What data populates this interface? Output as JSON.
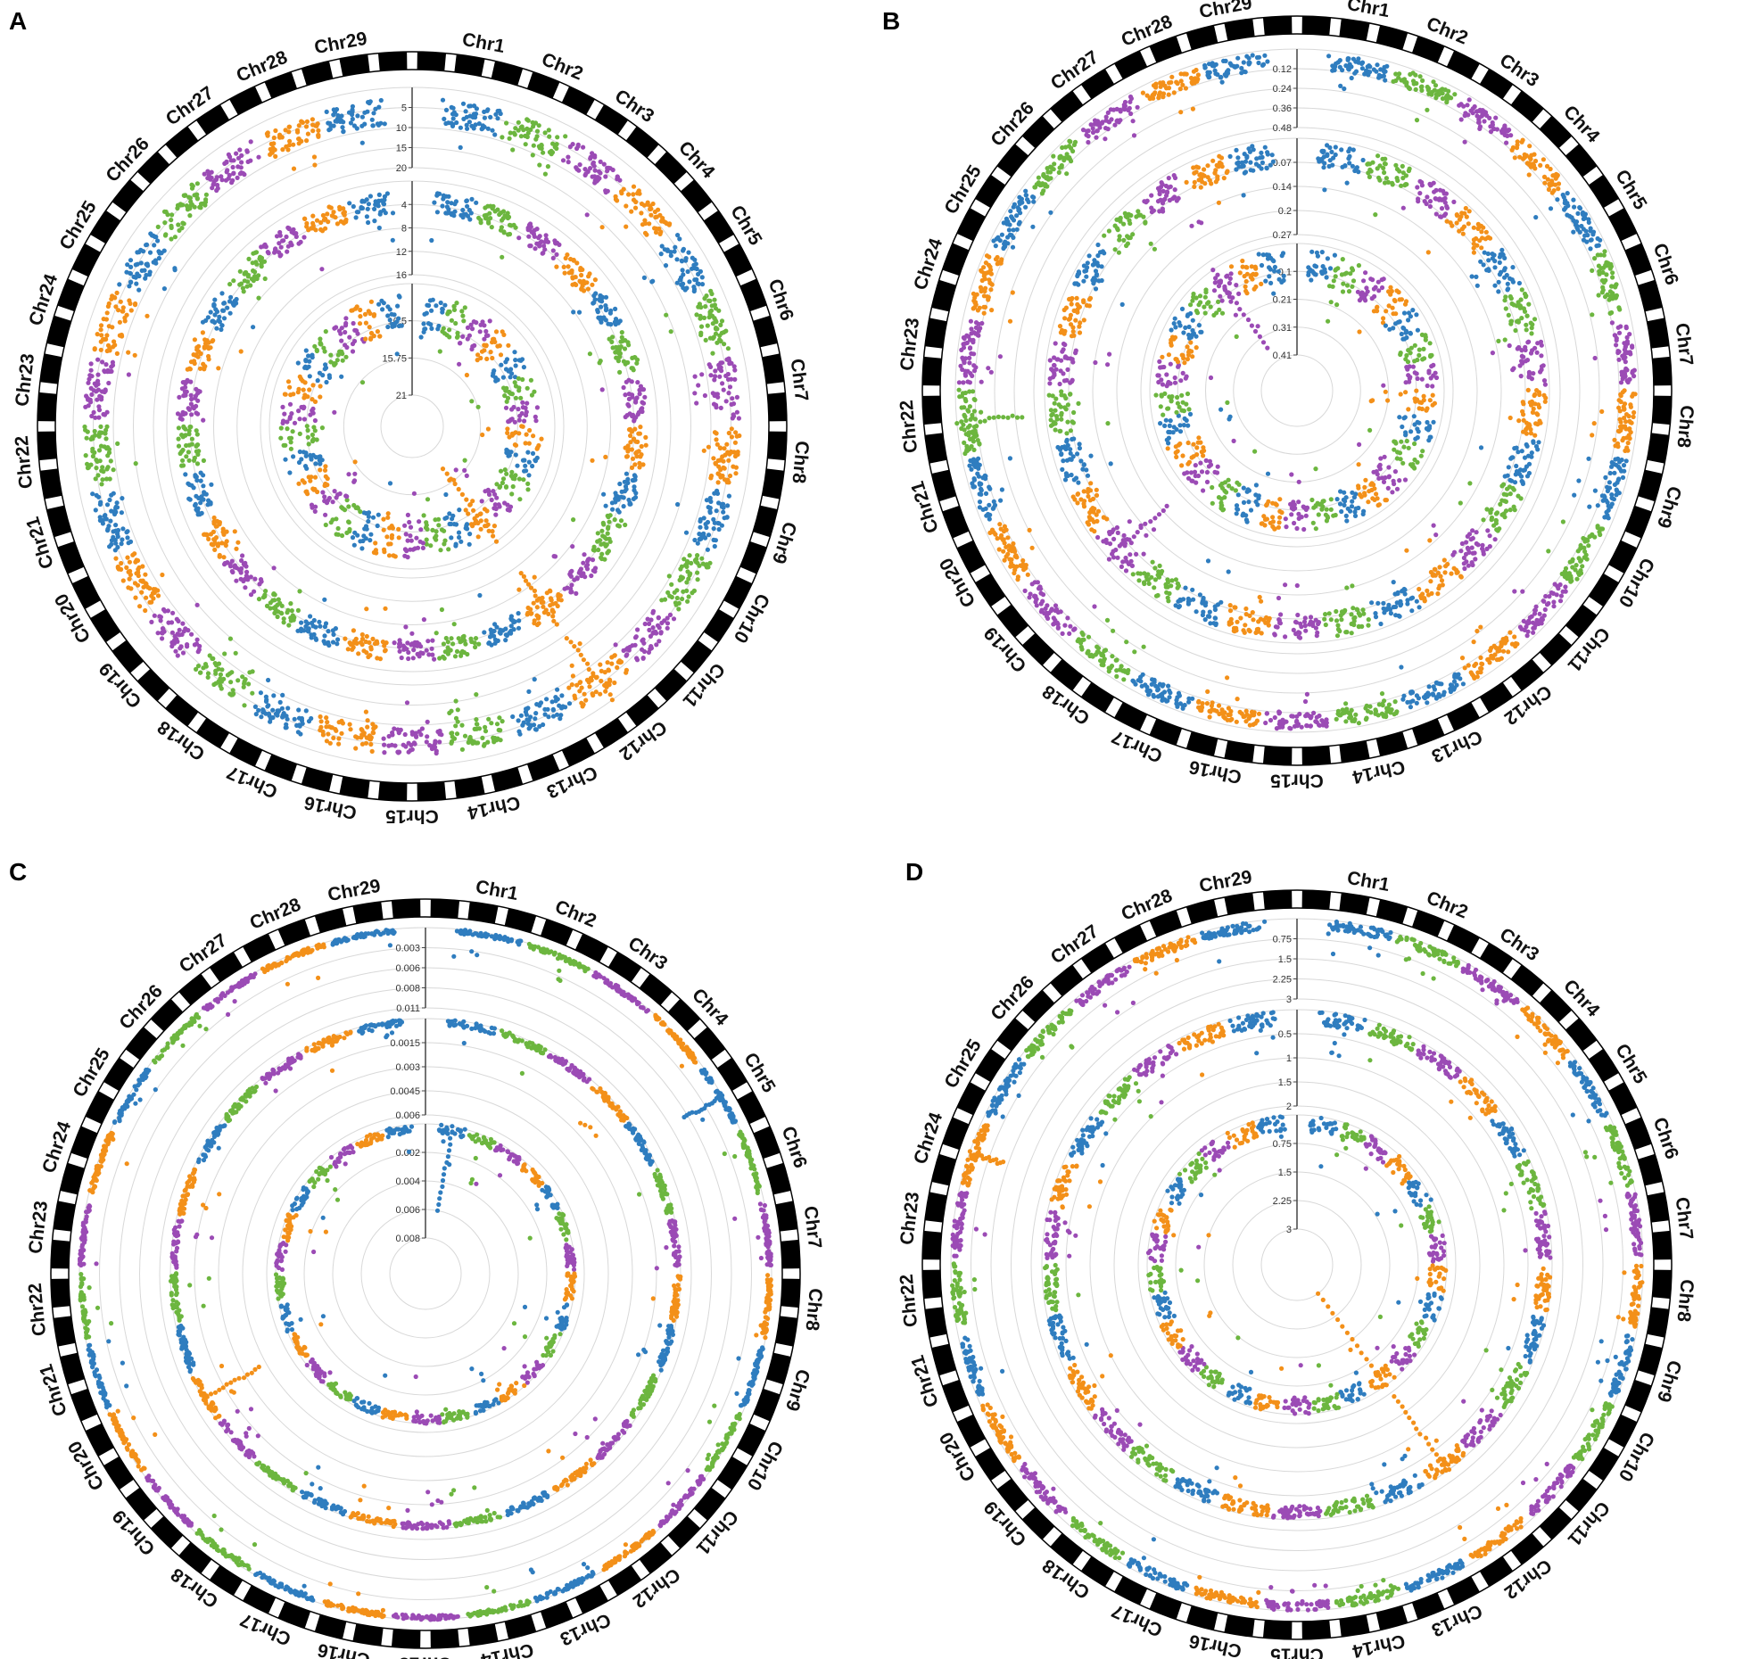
{
  "figure": {
    "panel_letters": [
      "A",
      "B",
      "C",
      "D"
    ]
  },
  "colors": {
    "track_palette": [
      "#2f7dbf",
      "#6cb63f",
      "#9b4bb5",
      "#f39019"
    ],
    "ideogram_block": "#000000",
    "ideogram_gap": "#ffffff",
    "gridline": "#d8d8d8"
  },
  "chart_data": [
    {
      "panel": "A",
      "type": "scatter",
      "layout": "circular-manhattan",
      "chromosomes": [
        "Chr1",
        "Chr2",
        "Chr3",
        "Chr4",
        "Chr5",
        "Chr6",
        "Chr7",
        "Chr8",
        "Chr9",
        "Chr10",
        "Chr11",
        "Chr12",
        "Chr13",
        "Chr14",
        "Chr15",
        "Chr16",
        "Chr17",
        "Chr18",
        "Chr19",
        "Chr20",
        "Chr21",
        "Chr22",
        "Chr23",
        "Chr24",
        "Chr25",
        "Chr26",
        "Chr27",
        "Chr28",
        "Chr29"
      ],
      "tracks": [
        {
          "ticks": [
            "5",
            "10",
            "15",
            "20"
          ],
          "ylim": [
            0,
            22
          ],
          "typical_range": [
            3,
            10
          ],
          "peaks": [
            {
              "chr": "Chr12",
              "value": 21
            }
          ]
        },
        {
          "ticks": [
            "4",
            "8",
            "12",
            "16"
          ],
          "ylim": [
            0,
            18
          ],
          "typical_range": [
            2,
            6
          ],
          "peaks": [
            {
              "chr": "Chr12",
              "value": 12
            }
          ]
        },
        {
          "ticks": [
            "10.5",
            "15.75",
            "21"
          ],
          "ylim": [
            0,
            21
          ],
          "typical_range": [
            2,
            9
          ],
          "peaks": [
            {
              "chr": "Chr12",
              "value": 17
            }
          ]
        }
      ],
      "grid": true
    },
    {
      "panel": "B",
      "type": "scatter",
      "layout": "circular-manhattan",
      "chromosomes": [
        "Chr1",
        "Chr2",
        "Chr3",
        "Chr4",
        "Chr5",
        "Chr6",
        "Chr7",
        "Chr8",
        "Chr9",
        "Chr10",
        "Chr11",
        "Chr12",
        "Chr13",
        "Chr14",
        "Chr15",
        "Chr16",
        "Chr17",
        "Chr18",
        "Chr19",
        "Chr20",
        "Chr21",
        "Chr22",
        "Chr23",
        "Chr24",
        "Chr25",
        "Chr26",
        "Chr27",
        "Chr28",
        "Chr29"
      ],
      "tracks": [
        {
          "ticks": [
            "0.12",
            "0.24",
            "0.36",
            "0.48"
          ],
          "ylim": [
            0,
            0.48
          ],
          "typical_range": [
            0.02,
            0.12
          ],
          "peaks": [
            {
              "chr": "Chr22",
              "value": 0.4
            }
          ]
        },
        {
          "ticks": [
            "0.07",
            "0.14",
            "0.2",
            "0.27"
          ],
          "ylim": [
            0,
            0.27
          ],
          "typical_range": [
            0.01,
            0.08
          ],
          "peaks": [
            {
              "chr": "Chr19",
              "value": 0.22
            }
          ]
        },
        {
          "ticks": [
            "0.1",
            "0.21",
            "0.31",
            "0.41"
          ],
          "ylim": [
            0,
            0.41
          ],
          "typical_range": [
            0.02,
            0.14
          ],
          "peaks": [
            {
              "chr": "Chr27",
              "value": 0.35
            }
          ]
        }
      ],
      "grid": true
    },
    {
      "panel": "C",
      "type": "scatter",
      "layout": "circular-manhattan",
      "chromosomes": [
        "Chr1",
        "Chr2",
        "Chr3",
        "Chr4",
        "Chr5",
        "Chr6",
        "Chr7",
        "Chr8",
        "Chr9",
        "Chr10",
        "Chr11",
        "Chr12",
        "Chr13",
        "Chr14",
        "Chr15",
        "Chr16",
        "Chr17",
        "Chr18",
        "Chr19",
        "Chr20",
        "Chr21",
        "Chr22",
        "Chr23",
        "Chr24",
        "Chr25",
        "Chr26",
        "Chr27",
        "Chr28",
        "Chr29"
      ],
      "tracks": [
        {
          "ticks": [
            "0.003",
            "0.006",
            "0.008",
            "0.011"
          ],
          "ylim": [
            0,
            0.011
          ],
          "typical_range": [
            0,
            0.0006
          ],
          "peaks": [
            {
              "chr": "Chr5",
              "value": 0.006
            }
          ]
        },
        {
          "ticks": [
            "0.0015",
            "0.003",
            "0.0045",
            "0.006"
          ],
          "ylim": [
            0,
            0.006
          ],
          "typical_range": [
            0,
            0.0004
          ],
          "peaks": [
            {
              "chr": "Chr20",
              "value": 0.004
            }
          ]
        },
        {
          "ticks": [
            "0.002",
            "0.004",
            "0.006",
            "0.008"
          ],
          "ylim": [
            0,
            0.008
          ],
          "typical_range": [
            0,
            0.0006
          ],
          "peaks": [
            {
              "chr": "Chr1",
              "value": 0.006
            }
          ]
        }
      ],
      "grid": true
    },
    {
      "panel": "D",
      "type": "scatter",
      "layout": "circular-manhattan",
      "chromosomes": [
        "Chr1",
        "Chr2",
        "Chr3",
        "Chr4",
        "Chr5",
        "Chr6",
        "Chr7",
        "Chr8",
        "Chr9",
        "Chr10",
        "Chr11",
        "Chr12",
        "Chr13",
        "Chr14",
        "Chr15",
        "Chr16",
        "Chr17",
        "Chr18",
        "Chr19",
        "Chr20",
        "Chr21",
        "Chr22",
        "Chr23",
        "Chr24",
        "Chr25",
        "Chr26",
        "Chr27",
        "Chr28",
        "Chr29"
      ],
      "tracks": [
        {
          "ticks": [
            "0.75",
            "1.5",
            "2.25",
            "3"
          ],
          "ylim": [
            0,
            3
          ],
          "typical_range": [
            0.02,
            0.35
          ],
          "peaks": [
            {
              "chr": "Chr24",
              "value": 1.3
            }
          ]
        },
        {
          "ticks": [
            "0.5",
            "1",
            "1.5",
            "2"
          ],
          "ylim": [
            0,
            2
          ],
          "typical_range": [
            0.02,
            0.3
          ],
          "peaks": [
            {
              "chr": "Chr12",
              "value": 1.9
            }
          ]
        },
        {
          "ticks": [
            "0.75",
            "1.5",
            "2.25",
            "3"
          ],
          "ylim": [
            0,
            3
          ],
          "typical_range": [
            0.02,
            0.45
          ],
          "peaks": [
            {
              "chr": "Chr12",
              "value": 3
            }
          ]
        }
      ],
      "grid": true
    }
  ]
}
